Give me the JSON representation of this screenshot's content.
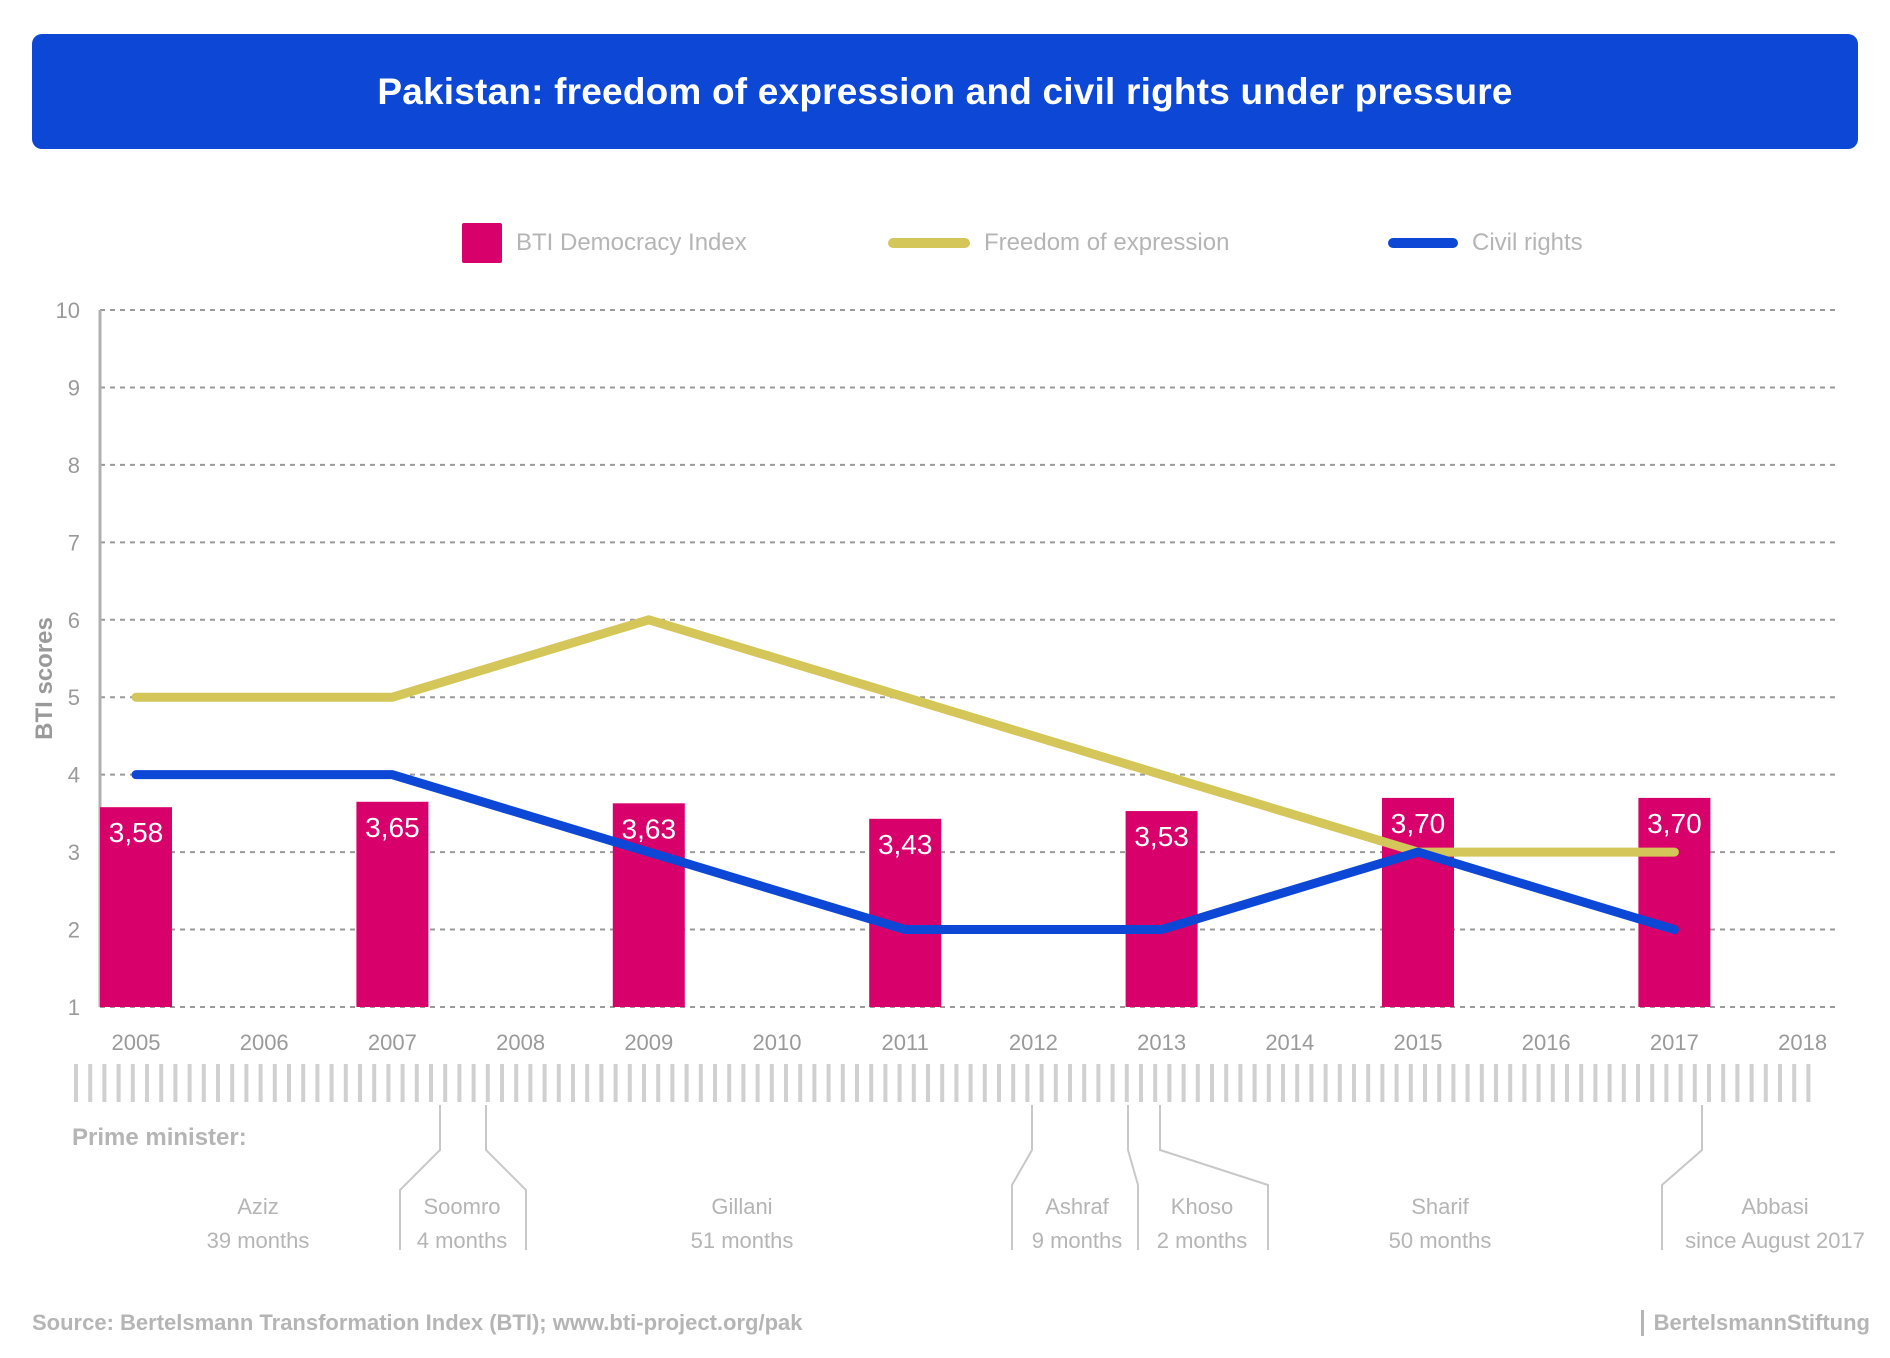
{
  "title": "Pakistan: freedom of expression and civil rights under pressure",
  "colors": {
    "title_bg": "#0c47d6",
    "democracy_index": "#d8006a",
    "freedom_of_expression": "#d4c659",
    "civil_rights": "#0c47d6",
    "grid": "#9a9a9a",
    "muted_text": "#b5b5b5"
  },
  "legend": [
    {
      "label": "BTI Democracy Index",
      "shape": "box",
      "color": "#d8006a"
    },
    {
      "label": "Freedom of expression",
      "shape": "line",
      "color": "#d4c659"
    },
    {
      "label": "Civil rights",
      "shape": "line",
      "color": "#0c47d6"
    }
  ],
  "chart_data": {
    "type": "bar",
    "ylabel": "BTI scores",
    "ylim": [
      1,
      10
    ],
    "yticks": [
      1,
      2,
      3,
      4,
      5,
      6,
      7,
      8,
      9,
      10
    ],
    "x": [
      "2005",
      "2006",
      "2007",
      "2008",
      "2009",
      "2010",
      "2011",
      "2012",
      "2013",
      "2014",
      "2015",
      "2016",
      "2017",
      "2018"
    ],
    "grid": true,
    "legend_position": "top",
    "series": [
      {
        "name": "BTI Democracy Index",
        "type": "bar",
        "x": [
          "2005",
          "2007",
          "2009",
          "2011",
          "2013",
          "2015",
          "2017"
        ],
        "values": [
          3.58,
          3.65,
          3.63,
          3.43,
          3.53,
          3.7,
          3.7
        ],
        "labels": [
          "3,58",
          "3,65",
          "3,63",
          "3,43",
          "3,53",
          "3,70",
          "3,70"
        ]
      },
      {
        "name": "Freedom of expression",
        "type": "line",
        "x": [
          "2005",
          "2007",
          "2009",
          "2011",
          "2013",
          "2015",
          "2017"
        ],
        "values": [
          5,
          5,
          6,
          5,
          4,
          3,
          3
        ]
      },
      {
        "name": "Civil rights",
        "type": "line",
        "x": [
          "2005",
          "2007",
          "2009",
          "2011",
          "2013",
          "2015",
          "2017"
        ],
        "values": [
          4,
          4,
          3,
          2,
          2,
          3,
          2
        ]
      }
    ]
  },
  "prime_minister": {
    "heading": "Prime minister:",
    "entries": [
      {
        "name": "Aziz",
        "term": "39 months"
      },
      {
        "name": "Soomro",
        "term": "4 months"
      },
      {
        "name": "Gillani",
        "term": "51 months"
      },
      {
        "name": "Ashraf",
        "term": "9 months"
      },
      {
        "name": "Khoso",
        "term": "2 months"
      },
      {
        "name": "Sharif",
        "term": "50 months"
      },
      {
        "name": "Abbasi",
        "term": "since August 2017"
      }
    ]
  },
  "footer": {
    "source": "Source: Bertelsmann Transformation Index (BTI); www.bti-project.org/pak",
    "brand": "BertelsmannStiftung"
  }
}
